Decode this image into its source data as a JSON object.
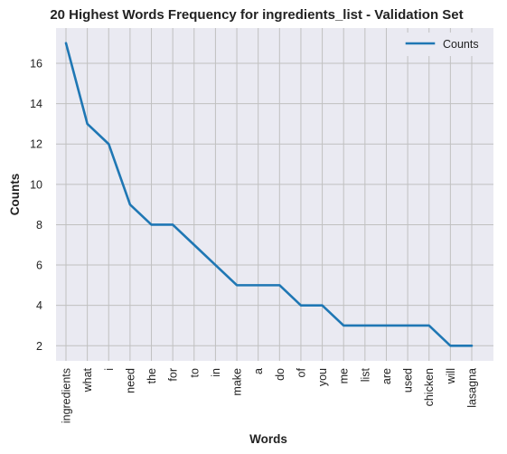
{
  "chart_data": {
    "type": "line",
    "title": "20 Highest Words Frequency for ingredients_list - Validation Set",
    "xlabel": "Words",
    "ylabel": "Counts",
    "categories": [
      "ingredients",
      "what",
      "i",
      "need",
      "the",
      "for",
      "to",
      "in",
      "make",
      "a",
      "do",
      "of",
      "you",
      "me",
      "list",
      "are",
      "used",
      "chicken",
      "will",
      "lasagna"
    ],
    "series": [
      {
        "name": "Counts",
        "values": [
          17,
          13,
          12,
          9,
          8,
          8,
          7,
          6,
          5,
          5,
          5,
          4,
          4,
          3,
          3,
          3,
          3,
          3,
          2,
          2
        ],
        "color": "#1f77b4"
      }
    ],
    "ylim": [
      1.25,
      17.75
    ],
    "yticks": [
      2,
      4,
      6,
      8,
      10,
      12,
      14,
      16
    ],
    "grid": true,
    "legend_position": "top-right",
    "background": "#eaeaf2",
    "grid_color": "#c0c0c0"
  }
}
